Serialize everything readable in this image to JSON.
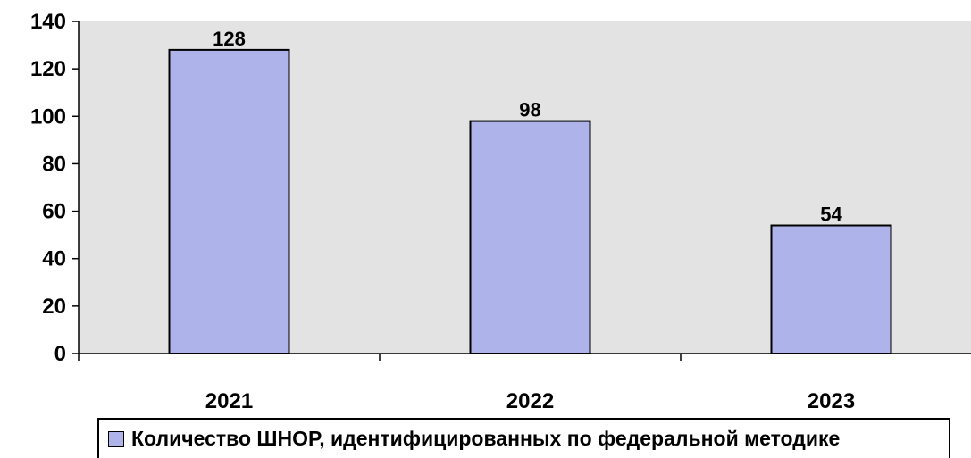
{
  "chart_data": {
    "type": "bar",
    "categories": [
      "2021",
      "2022",
      "2023"
    ],
    "series": [
      {
        "name": "Количество ШНОР, идентифицированных по федеральной методике",
        "values": [
          128,
          98,
          54
        ]
      }
    ],
    "data_labels": [
      "128",
      "98",
      "54"
    ],
    "ylim": [
      0,
      140
    ],
    "yticks": [
      "0",
      "20",
      "40",
      "60",
      "80",
      "100",
      "120",
      "140"
    ],
    "grid": false,
    "legend_position": "bottom",
    "colors": {
      "bar_fill": "#aeb4ea",
      "plot_background": "#e3e3e3",
      "outline": "#000000"
    }
  }
}
